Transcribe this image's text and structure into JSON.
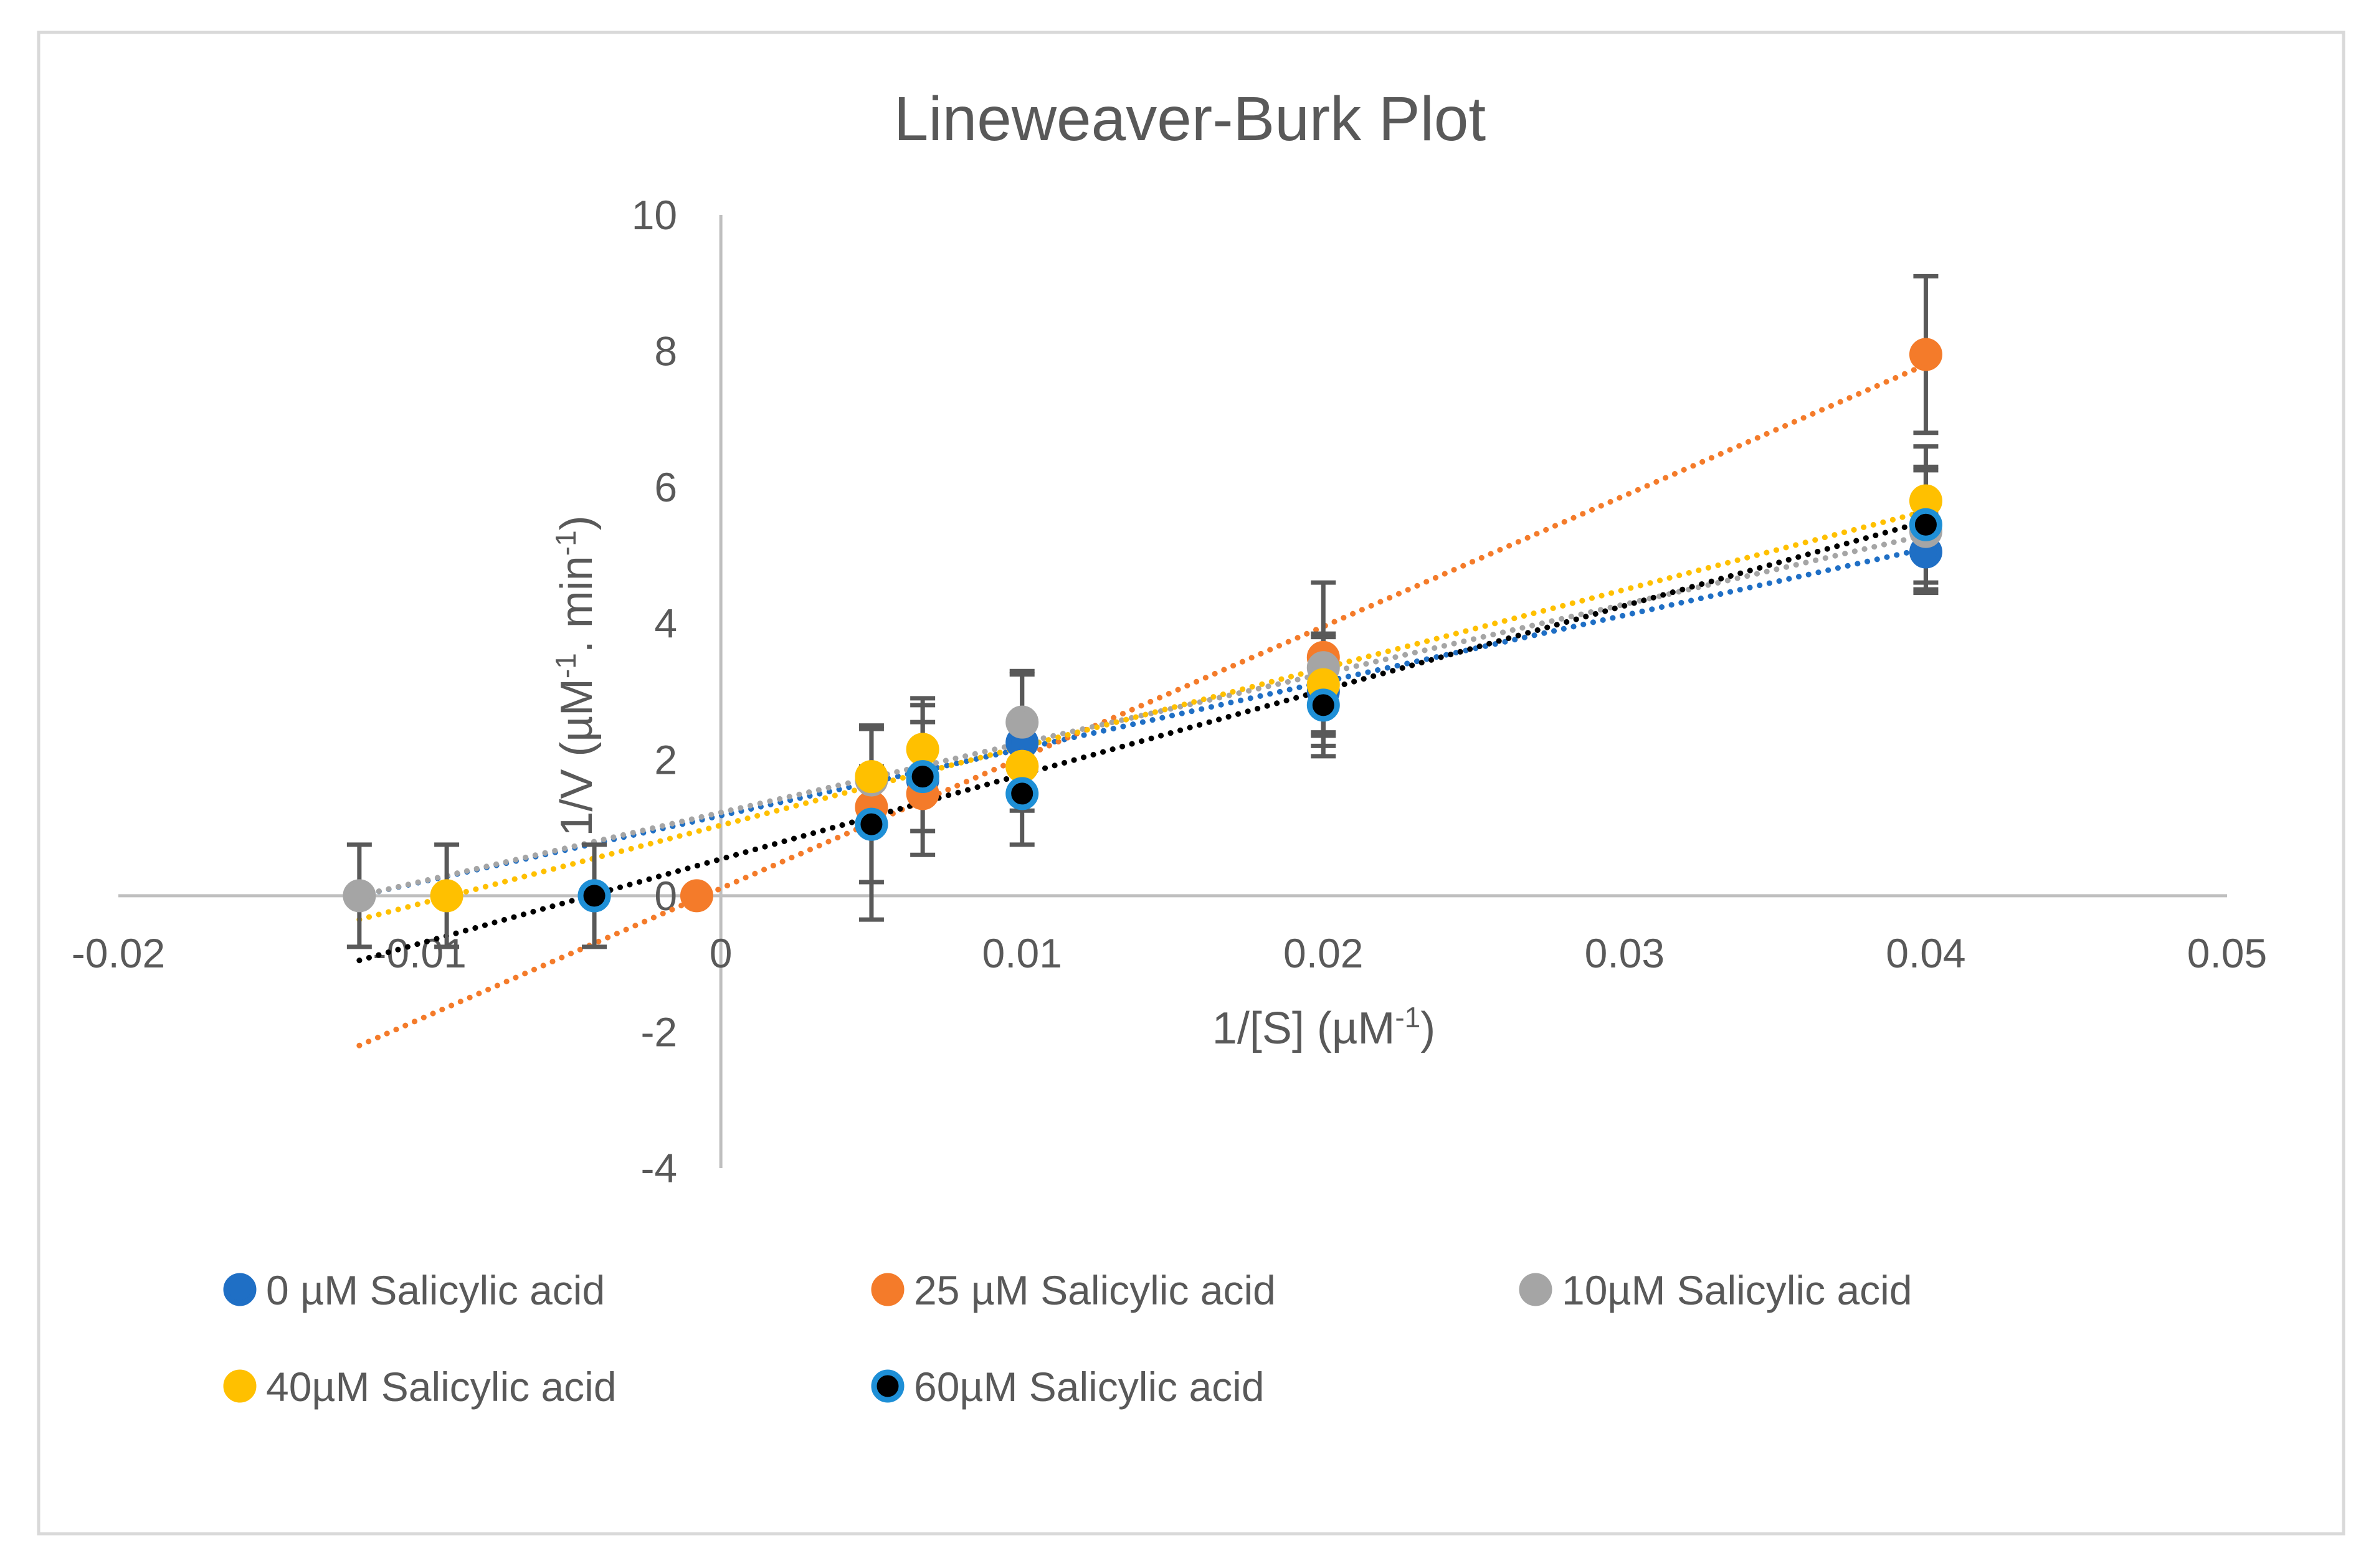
{
  "chart_data": {
    "type": "scatter",
    "title": "Lineweaver-Burk Plot",
    "xlabel_parts": [
      "1/[S] (µM",
      "-1",
      ")"
    ],
    "ylabel_parts": [
      "1/V (µM",
      "-1",
      ". min",
      "-1",
      ")"
    ],
    "xlim": [
      -0.02,
      0.05
    ],
    "ylim": [
      -4,
      10
    ],
    "x_ticks": [
      -0.02,
      -0.01,
      0,
      0.01,
      0.02,
      0.03,
      0.04,
      0.05
    ],
    "x_tick_labels": [
      "-0.02",
      "-0.01",
      "0",
      "0.01",
      "0.02",
      "0.03",
      "0.04",
      "0.05"
    ],
    "y_ticks": [
      -4,
      -2,
      0,
      2,
      4,
      6,
      8,
      10
    ],
    "y_tick_labels": [
      "-4",
      "-2",
      "0",
      "2",
      "4",
      "6",
      "8",
      "10"
    ],
    "trendline_style": "dotted-linear",
    "legend_position": "bottom",
    "series": [
      {
        "name": "0 µM Salicylic acid",
        "color": "#1f6fc5",
        "outline": "#1f6fc5",
        "x": [
          -0.0042,
          0.005,
          0.0067,
          0.01,
          0.02,
          0.04
        ],
        "y": [
          0,
          1.05,
          1.7,
          2.25,
          3.0,
          5.05
        ],
        "err": [
          null,
          1.4,
          1.1,
          1.0,
          0.8,
          0.55
        ],
        "fit_x": [
          -0.012,
          0.04
        ],
        "fit_y": [
          0.0,
          5.1
        ]
      },
      {
        "name": "25 µM Salicylic acid",
        "color": "#f47b2a",
        "outline": "#f47b2a",
        "x": [
          -0.0008,
          0.005,
          0.0067,
          0.01,
          0.02,
          0.04
        ],
        "y": [
          0,
          1.3,
          1.5,
          1.9,
          3.5,
          7.95
        ],
        "err": [
          null,
          null,
          null,
          null,
          1.1,
          1.15
        ],
        "fit_x": [
          -0.012,
          0.04
        ],
        "fit_y": [
          -2.2,
          7.8
        ]
      },
      {
        "name": "10µM Salicylic acid",
        "color": "#a5a5a5",
        "outline": "#a5a5a5",
        "x": [
          -0.012,
          0.005,
          0.0067,
          0.01,
          0.02,
          0.04
        ],
        "y": [
          0,
          1.7,
          1.75,
          2.55,
          3.35,
          5.35
        ],
        "err": [
          0.75,
          null,
          null,
          0.75,
          null,
          0.9
        ],
        "fit_x": [
          -0.012,
          0.04
        ],
        "fit_y": [
          0.0,
          5.3
        ]
      },
      {
        "name": "40µM Salicylic acid",
        "color": "#ffc000",
        "outline": "#ffc000",
        "x": [
          -0.0091,
          0.005,
          0.0067,
          0.01,
          0.02,
          0.04
        ],
        "y": [
          0,
          1.75,
          2.15,
          1.9,
          3.1,
          5.8
        ],
        "err": [
          0.75,
          0.75,
          0.75,
          null,
          0.75,
          0.8
        ],
        "fit_x": [
          -0.012,
          0.04
        ],
        "fit_y": [
          -0.35,
          5.65
        ]
      },
      {
        "name": "60µM Salicylic acid",
        "color": "#000000",
        "outline": "#1e8fd6",
        "x": [
          -0.0042,
          0.005,
          0.0067,
          0.01,
          0.02,
          0.04
        ],
        "y": [
          0,
          1.05,
          1.75,
          1.5,
          2.8,
          5.45
        ],
        "err": [
          0.75,
          0.85,
          0.8,
          0.75,
          0.75,
          0.85
        ],
        "fit_x": [
          -0.012,
          0.04
        ],
        "fit_y": [
          -0.95,
          5.5
        ]
      }
    ]
  }
}
